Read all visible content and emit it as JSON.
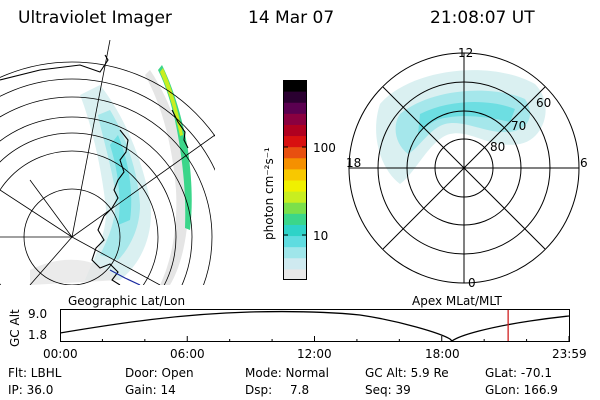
{
  "header": {
    "instrument": "Ultraviolet Imager",
    "date": "14 Mar 07",
    "time": "21:08:07 UT"
  },
  "colorbar": {
    "unit": "photon cm⁻²s⁻¹",
    "ticks": [
      {
        "label": "100",
        "value": 100
      },
      {
        "label": "10",
        "value": 10
      }
    ],
    "colors": [
      "#e8e8e8",
      "#cfeaf0",
      "#9fe6ea",
      "#5fdce0",
      "#2ed3c8",
      "#3bd68a",
      "#7be04a",
      "#c8ee20",
      "#f0f000",
      "#f8c800",
      "#f59000",
      "#e85010",
      "#d81010",
      "#b00020",
      "#8a0040",
      "#5a0050",
      "#2a0030",
      "#000000"
    ]
  },
  "geo_map": {
    "label": "Geographic Lat/Lon"
  },
  "polar_map": {
    "label": "Apex MLat/MLT",
    "mlt_labels": {
      "top": "12",
      "right": "6",
      "bottom": "0",
      "left": "18"
    },
    "lat_labels": [
      "60",
      "70",
      "80"
    ]
  },
  "alt_plot": {
    "ylabel": "GC Alt",
    "yticks": [
      "9.0",
      "1.8"
    ],
    "xticks": [
      "00:00",
      "06:00",
      "12:00",
      "18:00",
      "23:59"
    ],
    "current_time_hours": 21.13
  },
  "footer": {
    "flt": "Flt: LBHL",
    "door": "Door: Open",
    "mode": "Mode: Normal",
    "gcalt": "GC Alt: 5.9 Re",
    "glat": "GLat: -70.1",
    "ip": "IP: 36.0",
    "gain": "Gain: 14",
    "dsp_label": "Dsp:",
    "dsp_value": "7.8",
    "seq": "Seq: 39",
    "glon": "GLon: 166.9"
  },
  "accent": {
    "current_time_marker": "#d02020",
    "coast": "#000000",
    "aurora_cyan": "#5fdce0",
    "aurora_green": "#3bd68a"
  }
}
